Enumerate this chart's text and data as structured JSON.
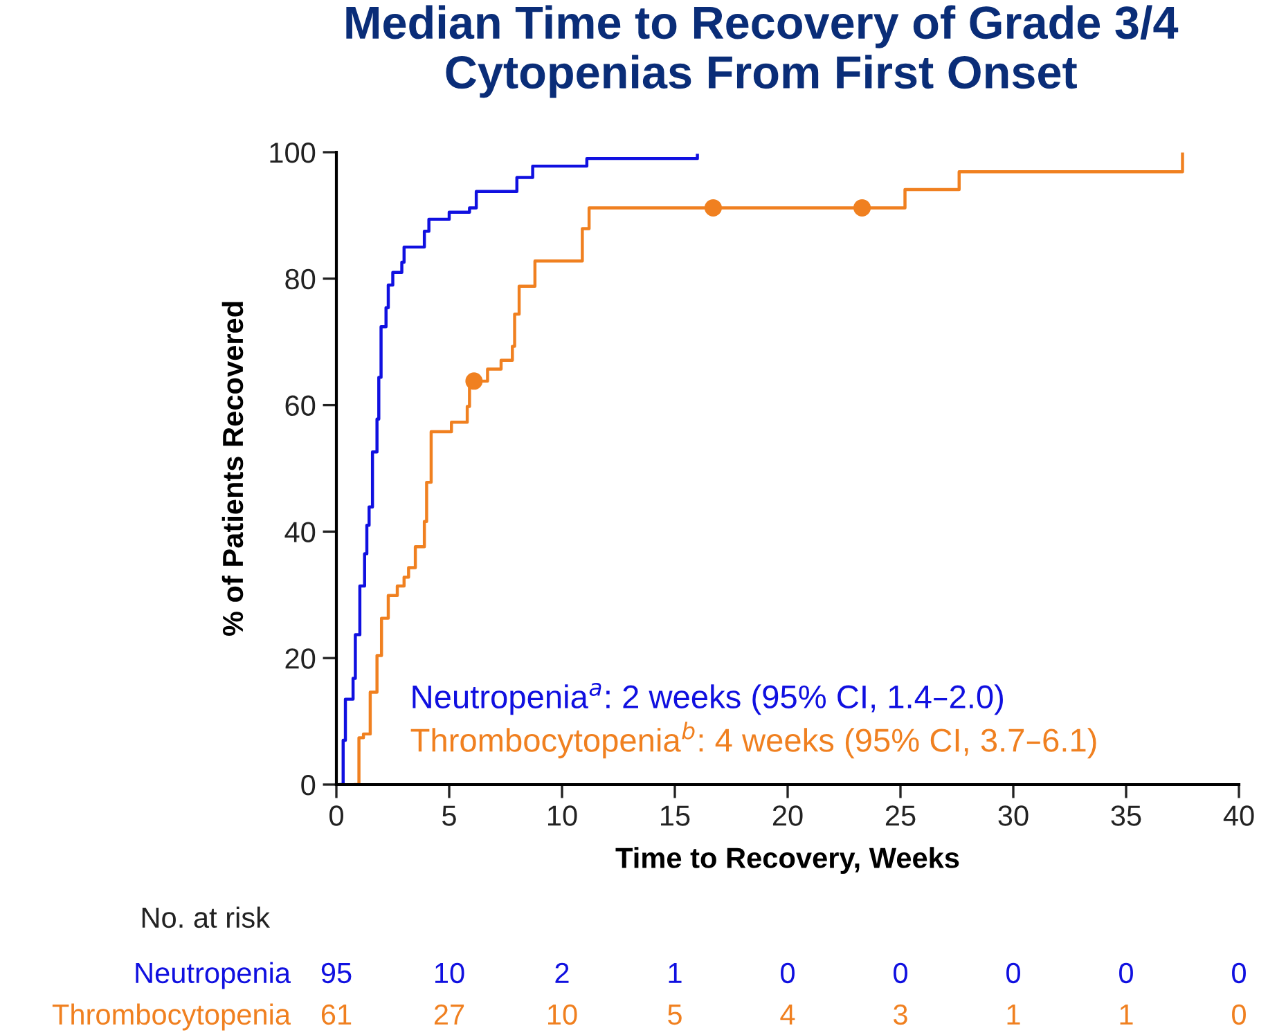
{
  "chart_data": {
    "type": "step",
    "title": "Median Time to Recovery of Grade 3/4\nCytopenias From First Onset",
    "xlabel": "Time to Recovery, Weeks",
    "ylabel": "% of Patients Recovered",
    "xlim": [
      0,
      40
    ],
    "xticks": [
      0,
      5,
      10,
      15,
      20,
      25,
      30,
      35,
      40
    ],
    "ylim": [
      0,
      100
    ],
    "yticks": [
      0,
      20,
      40,
      60,
      80,
      100
    ],
    "grid": false,
    "legend": "bottom left",
    "series": [
      {
        "name": "Neutropenia$^{a}$: 2 weeks (95% CI, 1.4–2.0)",
        "color": "#1010e0",
        "x": [
          0.2,
          0.3,
          0.4,
          0.74,
          0.84,
          1.04,
          1.25,
          1.35,
          1.45,
          1.6,
          1.8,
          1.88,
          1.98,
          2.2,
          2.3,
          2.5,
          2.9,
          3.0,
          3.9,
          4.1,
          5.0,
          5.9,
          6.2,
          8.0,
          8.7,
          11.1,
          16.0,
          16.0
        ],
        "values": [
          0,
          7,
          13.5,
          16.8,
          23.7,
          31.4,
          36.5,
          41,
          43.9,
          52.6,
          57.8,
          64.4,
          72.4,
          75.4,
          79,
          81,
          82.6,
          85,
          87.5,
          89.4,
          90.5,
          91.2,
          93.8,
          96,
          97.8,
          99,
          99,
          99.5
        ]
      },
      {
        "name": "Thrombocytopenia$^{b}$: 4 weeks (95% CI, 3.7–6.1)",
        "color": "#f08020",
        "x": [
          0.84,
          1.0,
          1.2,
          1.5,
          1.8,
          2.0,
          2.3,
          2.7,
          3.0,
          3.2,
          3.5,
          3.9,
          4.0,
          4.2,
          5.1,
          5.8,
          5.9,
          6.7,
          7.3,
          7.8,
          7.9,
          8.1,
          8.8,
          10.9,
          11.2,
          25.2,
          27.6,
          37.5,
          37.5
        ],
        "values": [
          0,
          7.4,
          8,
          14.6,
          20.4,
          26.3,
          29.9,
          31.4,
          32.8,
          34.3,
          37.6,
          41.6,
          47.8,
          55.8,
          57.3,
          59.8,
          63.8,
          65.7,
          67.1,
          69.3,
          74.4,
          78.8,
          82.8,
          87.9,
          91.2,
          94.1,
          96.9,
          96.9,
          99.7
        ]
      },
      {
        "type": "scatter",
        "marker": "circle",
        "color": "#f08020",
        "x": [
          6.1,
          16.7,
          23.3
        ],
        "values": [
          63.8,
          91.2,
          91.2
        ]
      }
    ],
    "annotations": [
      "No. at risk",
      "Neutropenia",
      "95",
      "10",
      "2",
      "1",
      "0",
      "0",
      "0",
      "0",
      "0",
      "Thrombocytopenia",
      "61",
      "27",
      "10",
      "5",
      "4",
      "3",
      "1",
      "1",
      "0"
    ]
  }
}
